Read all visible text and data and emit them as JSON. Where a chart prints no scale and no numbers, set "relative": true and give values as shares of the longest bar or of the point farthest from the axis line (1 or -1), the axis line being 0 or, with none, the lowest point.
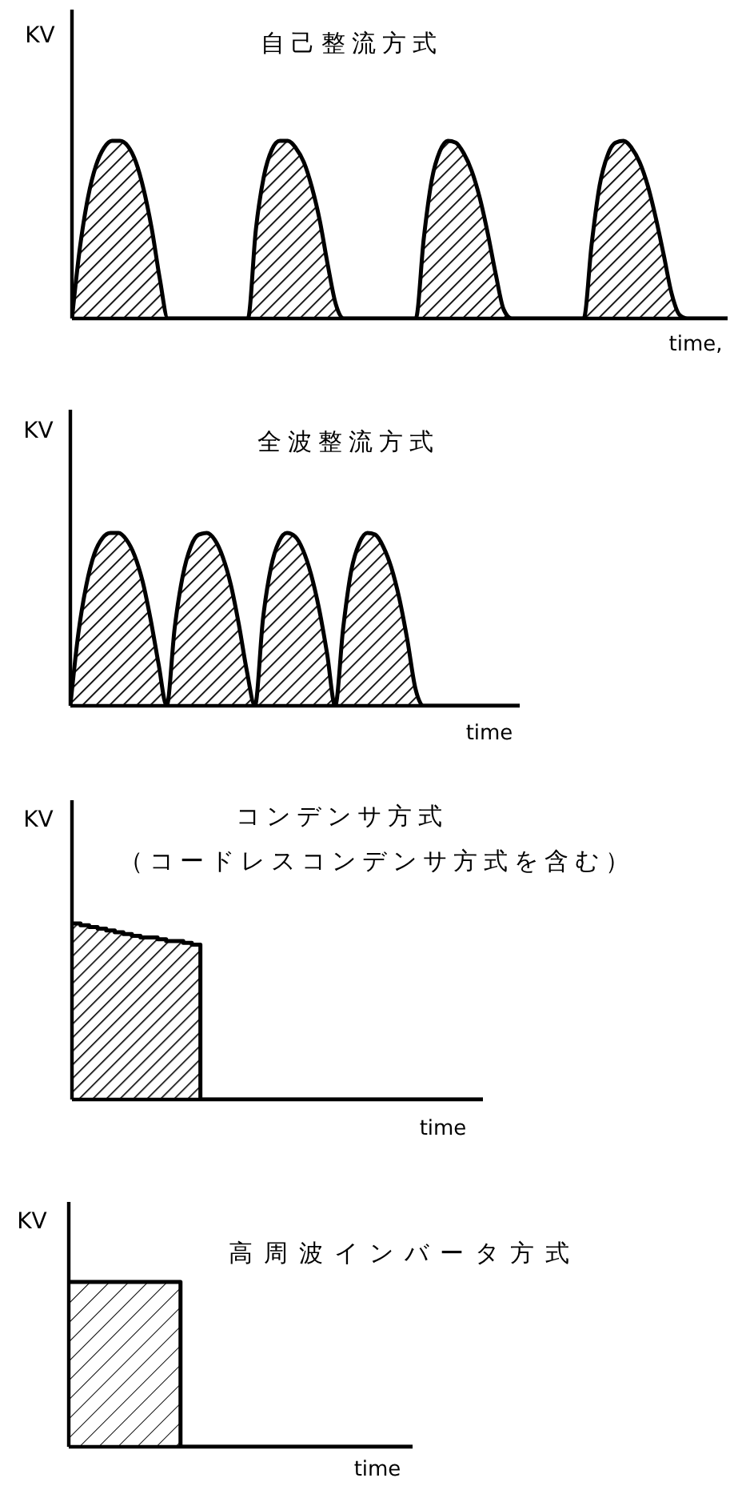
{
  "chart_data": [
    {
      "type": "area",
      "title": "自己整流方式",
      "xlabel": "time,",
      "ylabel": "KV",
      "relative": true,
      "color": "#000000",
      "categories": [
        null,
        null,
        null,
        null,
        null,
        null,
        null,
        null,
        null,
        null,
        null,
        null,
        null,
        null,
        null,
        null,
        null,
        null,
        null,
        null,
        null,
        null,
        null,
        null,
        null,
        null,
        null,
        null,
        null,
        null,
        null,
        null,
        null,
        null,
        null,
        null,
        null,
        null,
        null,
        null,
        null,
        null,
        null,
        null,
        null,
        null,
        null,
        null,
        null,
        null,
        null,
        null,
        null,
        null,
        null,
        null,
        null,
        null,
        null,
        null,
        null,
        null,
        null,
        null,
        null,
        null,
        null,
        null,
        null,
        null,
        null,
        null,
        null,
        null,
        null,
        null,
        null,
        null,
        null,
        null,
        null,
        null,
        null
      ],
      "values": [
        0,
        0.4,
        0.68,
        0.86,
        0.96,
        1,
        1,
        0.97,
        0.88,
        0.72,
        0.5,
        0.22,
        0,
        0,
        0,
        0,
        0,
        0,
        0,
        0,
        0,
        0,
        0,
        0.5,
        0.8,
        0.95,
        1,
        1,
        0.96,
        0.88,
        0.74,
        0.55,
        0.3,
        0.08,
        0,
        0,
        0,
        0,
        0,
        0,
        0,
        0,
        0,
        0,
        0.45,
        0.78,
        0.94,
        1,
        0.99,
        0.93,
        0.83,
        0.68,
        0.48,
        0.25,
        0.05,
        0,
        0,
        0,
        0,
        0,
        0,
        0,
        0,
        0,
        0,
        0.42,
        0.75,
        0.92,
        0.99,
        1,
        0.96,
        0.88,
        0.75,
        0.57,
        0.36,
        0.14,
        0.02,
        0,
        0,
        0,
        0,
        0,
        0
      ]
    },
    {
      "type": "area",
      "title": "全波整流方式",
      "xlabel": "time",
      "ylabel": "KV",
      "relative": true,
      "color": "#000000",
      "categories": [
        null,
        null,
        null,
        null,
        null,
        null,
        null,
        null,
        null,
        null,
        null,
        null,
        null,
        null,
        null,
        null,
        null,
        null,
        null,
        null,
        null,
        null,
        null,
        null,
        null,
        null,
        null,
        null,
        null,
        null,
        null,
        null,
        null,
        null,
        null,
        null,
        null,
        null,
        null,
        null,
        null,
        null,
        null,
        null,
        null,
        null,
        null,
        null,
        null,
        null,
        null,
        null,
        null,
        null,
        null,
        null,
        null
      ],
      "values": [
        0,
        0.42,
        0.7,
        0.88,
        0.97,
        1,
        1,
        0.96,
        0.87,
        0.72,
        0.5,
        0.24,
        0,
        0.45,
        0.75,
        0.92,
        0.99,
        1,
        0.96,
        0.86,
        0.7,
        0.47,
        0.2,
        0,
        0.5,
        0.8,
        0.95,
        1,
        0.98,
        0.9,
        0.76,
        0.56,
        0.3,
        0,
        0.45,
        0.78,
        0.94,
        1,
        0.99,
        0.92,
        0.8,
        0.62,
        0.38,
        0.1,
        0,
        0,
        0,
        0,
        0,
        0,
        0,
        0,
        0,
        0,
        0,
        0,
        0
      ]
    },
    {
      "type": "area",
      "title": "コンデンサ方式",
      "subtitle": "（コードレスコンデンサ方式を含む）",
      "xlabel": "time",
      "ylabel": "KV",
      "relative": true,
      "color": "#000000",
      "categories": [
        null,
        null,
        null,
        null,
        null,
        null,
        null,
        null,
        null,
        null,
        null,
        null,
        null,
        null,
        null,
        null,
        null,
        null,
        null,
        null,
        null,
        null,
        null,
        null,
        null,
        null,
        null,
        null,
        null,
        null,
        null,
        null,
        null,
        null,
        null,
        null,
        null,
        null,
        null,
        null,
        null,
        null,
        null,
        null,
        null,
        null,
        null,
        null,
        null
      ],
      "values": [
        1,
        0.99,
        0.98,
        0.97,
        0.96,
        0.95,
        0.94,
        0.93,
        0.92,
        0.92,
        0.91,
        0.9,
        0.9,
        0.89,
        0.88,
        0,
        0,
        0,
        0,
        0,
        0,
        0,
        0,
        0,
        0,
        0,
        0,
        0,
        0,
        0,
        0,
        0,
        0,
        0,
        0,
        0,
        0,
        0,
        0,
        0,
        0,
        0,
        0,
        0,
        0,
        0,
        0,
        0,
        0
      ]
    },
    {
      "type": "area",
      "title": "高周波インバータ方式",
      "xlabel": "time",
      "ylabel": "KV",
      "relative": true,
      "color": "#000000",
      "categories": [
        null,
        null,
        null,
        null,
        null,
        null,
        null,
        null,
        null,
        null,
        null,
        null,
        null,
        null,
        null,
        null,
        null,
        null,
        null,
        null,
        null,
        null,
        null,
        null,
        null,
        null,
        null,
        null,
        null,
        null,
        null,
        null,
        null,
        null,
        null,
        null,
        null,
        null,
        null,
        null,
        null
      ],
      "values": [
        1,
        1,
        1,
        1,
        1,
        1,
        1,
        1,
        1,
        1,
        1,
        1,
        1,
        0,
        0,
        0,
        0,
        0,
        0,
        0,
        0,
        0,
        0,
        0,
        0,
        0,
        0,
        0,
        0,
        0,
        0,
        0,
        0,
        0,
        0,
        0,
        0,
        0,
        0,
        0,
        0
      ]
    }
  ]
}
